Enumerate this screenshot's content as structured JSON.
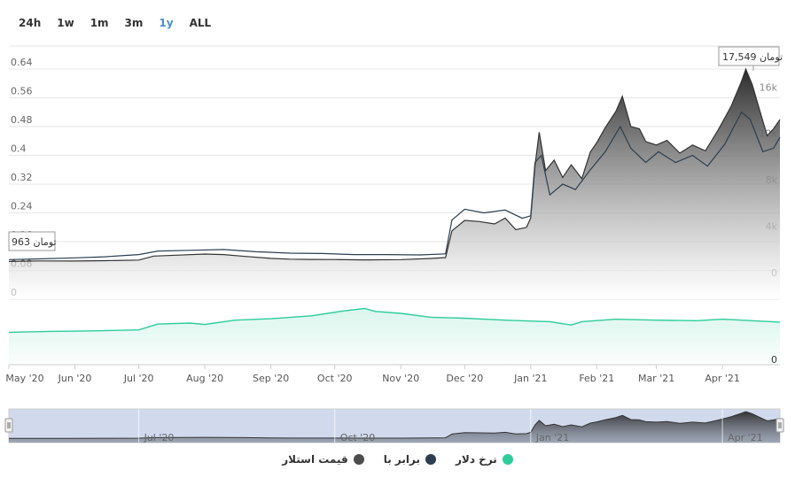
{
  "range_selector": {
    "buttons": [
      "24h",
      "1w",
      "1m",
      "3m",
      "1y",
      "ALL"
    ],
    "active": "1y"
  },
  "chart_data": {
    "type": "area",
    "x_labels": [
      "May '20",
      "Jun '20",
      "Jul '20",
      "Aug '20",
      "Sep '20",
      "Oct '20",
      "Nov '20",
      "Dec '20",
      "Jan '21",
      "Feb '21",
      "Mar '21",
      "Apr '21"
    ],
    "x_range": [
      "2020-05-01",
      "2021-04-28"
    ],
    "left_axis": {
      "ticks": [
        "0",
        "0.08",
        "0.16",
        "0.24",
        "0.32",
        "0.4",
        "0.48",
        "0.56",
        "0.64"
      ],
      "range": [
        0,
        0.68
      ]
    },
    "right_axis_price": {
      "ticks": [
        "0",
        "4k",
        "8k",
        "12k",
        "16k"
      ],
      "range": [
        0,
        17549
      ]
    },
    "right_axis_rate": {
      "ticks": [
        "0"
      ]
    },
    "annotations": {
      "left": "963 تومان",
      "max": "17,549 تومان"
    },
    "series": [
      {
        "name": "قیمت استلار",
        "color": "#4d4d4d",
        "axis": "price",
        "points": [
          [
            "2020-05-01",
            960
          ],
          [
            "2020-05-15",
            1010
          ],
          [
            "2020-06-01",
            1000
          ],
          [
            "2020-06-15",
            1030
          ],
          [
            "2020-07-01",
            1080
          ],
          [
            "2020-07-08",
            1430
          ],
          [
            "2020-07-20",
            1510
          ],
          [
            "2020-08-01",
            1600
          ],
          [
            "2020-08-10",
            1560
          ],
          [
            "2020-08-20",
            1400
          ],
          [
            "2020-09-01",
            1230
          ],
          [
            "2020-09-10",
            1160
          ],
          [
            "2020-09-20",
            1140
          ],
          [
            "2020-10-01",
            1130
          ],
          [
            "2020-10-15",
            1100
          ],
          [
            "2020-11-01",
            1120
          ],
          [
            "2020-11-15",
            1220
          ],
          [
            "2020-11-22",
            1300
          ],
          [
            "2020-11-25",
            3600
          ],
          [
            "2020-12-01",
            4500
          ],
          [
            "2020-12-08",
            4400
          ],
          [
            "2020-12-15",
            4200
          ],
          [
            "2020-12-20",
            4700
          ],
          [
            "2020-12-25",
            3700
          ],
          [
            "2020-12-30",
            3900
          ],
          [
            "2021-01-01",
            4700
          ],
          [
            "2021-01-03",
            9200
          ],
          [
            "2021-01-05",
            12100
          ],
          [
            "2021-01-08",
            8800
          ],
          [
            "2021-01-12",
            9700
          ],
          [
            "2021-01-16",
            8200
          ],
          [
            "2021-01-20",
            9300
          ],
          [
            "2021-01-25",
            8100
          ],
          [
            "2021-01-29",
            10400
          ],
          [
            "2021-02-01",
            11200
          ],
          [
            "2021-02-05",
            12500
          ],
          [
            "2021-02-10",
            13900
          ],
          [
            "2021-02-13",
            15200
          ],
          [
            "2021-02-17",
            12600
          ],
          [
            "2021-02-21",
            12400
          ],
          [
            "2021-02-24",
            11300
          ],
          [
            "2021-03-01",
            11000
          ],
          [
            "2021-03-06",
            11400
          ],
          [
            "2021-03-12",
            10300
          ],
          [
            "2021-03-18",
            11000
          ],
          [
            "2021-03-24",
            10500
          ],
          [
            "2021-03-30",
            12300
          ],
          [
            "2021-04-05",
            14300
          ],
          [
            "2021-04-10",
            16500
          ],
          [
            "2021-04-12",
            17549
          ],
          [
            "2021-04-15",
            16200
          ],
          [
            "2021-04-18",
            14300
          ],
          [
            "2021-04-22",
            11800
          ],
          [
            "2021-04-25",
            12400
          ],
          [
            "2021-04-28",
            13200
          ]
        ]
      },
      {
        "name": "برابر با",
        "color": "#2c3e50",
        "axis": "left",
        "points": [
          [
            "2020-05-01",
            0.11
          ],
          [
            "2020-05-15",
            0.112
          ],
          [
            "2020-06-01",
            0.115
          ],
          [
            "2020-06-15",
            0.118
          ],
          [
            "2020-07-01",
            0.124
          ],
          [
            "2020-07-10",
            0.134
          ],
          [
            "2020-07-25",
            0.136
          ],
          [
            "2020-08-10",
            0.138
          ],
          [
            "2020-08-25",
            0.132
          ],
          [
            "2020-09-10",
            0.128
          ],
          [
            "2020-09-25",
            0.127
          ],
          [
            "2020-10-10",
            0.124
          ],
          [
            "2020-10-25",
            0.124
          ],
          [
            "2020-11-10",
            0.123
          ],
          [
            "2020-11-22",
            0.126
          ],
          [
            "2020-11-25",
            0.22
          ],
          [
            "2020-12-01",
            0.25
          ],
          [
            "2020-12-10",
            0.24
          ],
          [
            "2020-12-20",
            0.248
          ],
          [
            "2020-12-28",
            0.225
          ],
          [
            "2021-01-01",
            0.232
          ],
          [
            "2021-01-03",
            0.38
          ],
          [
            "2021-01-06",
            0.4
          ],
          [
            "2021-01-10",
            0.29
          ],
          [
            "2021-01-16",
            0.32
          ],
          [
            "2021-01-22",
            0.305
          ],
          [
            "2021-01-29",
            0.36
          ],
          [
            "2021-02-05",
            0.41
          ],
          [
            "2021-02-12",
            0.48
          ],
          [
            "2021-02-17",
            0.42
          ],
          [
            "2021-02-24",
            0.38
          ],
          [
            "2021-03-02",
            0.41
          ],
          [
            "2021-03-10",
            0.38
          ],
          [
            "2021-03-18",
            0.4
          ],
          [
            "2021-03-25",
            0.37
          ],
          [
            "2021-04-02",
            0.43
          ],
          [
            "2021-04-10",
            0.52
          ],
          [
            "2021-04-14",
            0.5
          ],
          [
            "2021-04-20",
            0.41
          ],
          [
            "2021-04-25",
            0.42
          ],
          [
            "2021-04-28",
            0.45
          ]
        ]
      },
      {
        "name": "نرخ دلار",
        "color": "#2ecc9a",
        "axis": "rate",
        "points": [
          [
            "2020-05-01",
            0.41
          ],
          [
            "2020-05-20",
            0.43
          ],
          [
            "2020-06-10",
            0.44
          ],
          [
            "2020-07-01",
            0.46
          ],
          [
            "2020-07-10",
            0.58
          ],
          [
            "2020-07-25",
            0.6
          ],
          [
            "2020-08-01",
            0.57
          ],
          [
            "2020-08-15",
            0.66
          ],
          [
            "2020-09-01",
            0.69
          ],
          [
            "2020-09-20",
            0.75
          ],
          [
            "2020-10-05",
            0.85
          ],
          [
            "2020-10-15",
            0.9
          ],
          [
            "2020-10-20",
            0.84
          ],
          [
            "2020-11-01",
            0.8
          ],
          [
            "2020-11-15",
            0.72
          ],
          [
            "2020-12-01",
            0.7
          ],
          [
            "2020-12-20",
            0.66
          ],
          [
            "2021-01-10",
            0.63
          ],
          [
            "2021-01-20",
            0.56
          ],
          [
            "2021-01-25",
            0.63
          ],
          [
            "2021-02-10",
            0.68
          ],
          [
            "2021-03-01",
            0.66
          ],
          [
            "2021-03-20",
            0.65
          ],
          [
            "2021-04-01",
            0.68
          ],
          [
            "2021-04-28",
            0.62
          ]
        ]
      }
    ],
    "navigator": {
      "x_labels": [
        "Jul '20",
        "Oct '20",
        "Jan '21",
        "Apr '21"
      ]
    }
  }
}
